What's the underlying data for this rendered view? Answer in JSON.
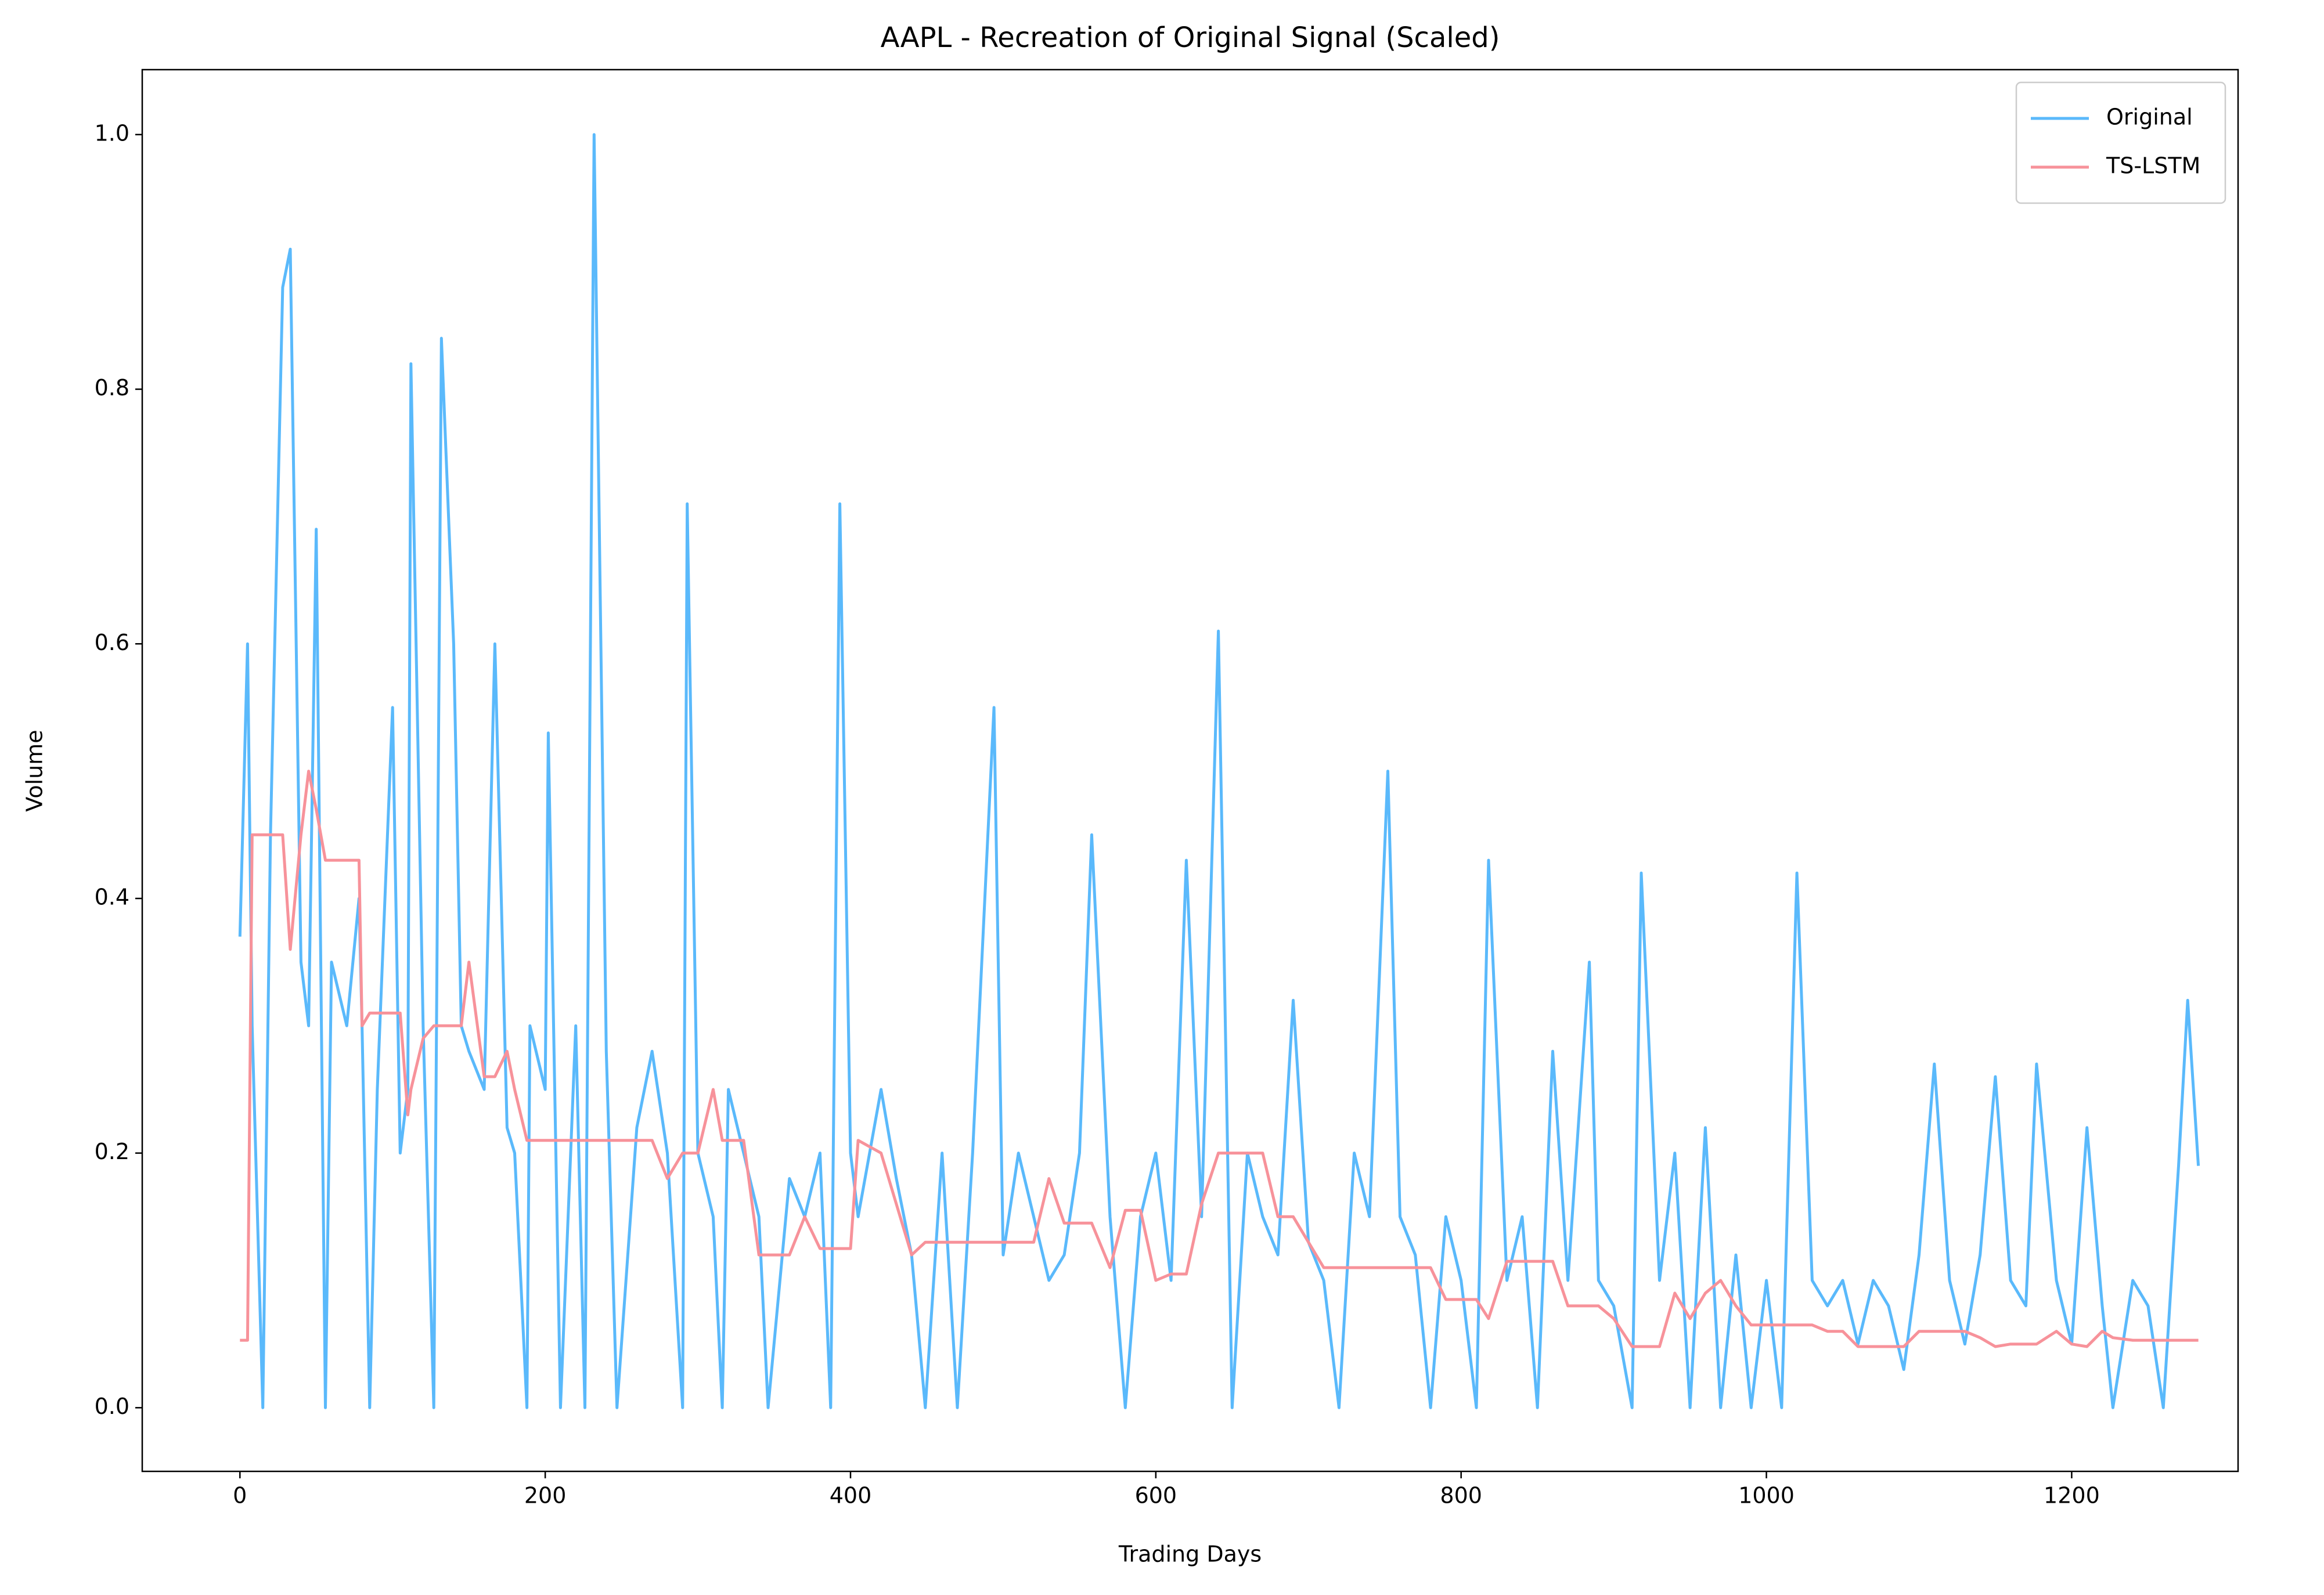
{
  "chart_data": {
    "type": "line",
    "title": "AAPL - Recreation of Original Signal (Scaled)",
    "x_label": "Trading Days",
    "y_label": "Volume",
    "x": [
      0,
      5,
      8,
      15,
      20,
      28,
      33,
      40,
      45,
      50,
      56,
      60,
      70,
      78,
      80,
      85,
      90,
      100,
      105,
      110,
      112,
      120,
      127,
      132,
      140,
      145,
      150,
      160,
      167,
      175,
      180,
      188,
      190,
      200,
      202,
      210,
      220,
      226,
      232,
      240,
      247,
      260,
      270,
      280,
      290,
      293,
      300,
      310,
      316,
      320,
      330,
      340,
      346,
      360,
      370,
      380,
      387,
      393,
      400,
      405,
      420,
      430,
      440,
      449,
      460,
      470,
      480,
      494,
      500,
      510,
      520,
      530,
      540,
      550,
      558,
      570,
      580,
      590,
      600,
      610,
      620,
      630,
      641,
      650,
      660,
      670,
      680,
      690,
      700,
      710,
      720,
      730,
      740,
      752,
      760,
      770,
      780,
      790,
      800,
      810,
      818,
      830,
      840,
      850,
      860,
      870,
      884,
      890,
      900,
      912,
      918,
      930,
      940,
      950,
      960,
      970,
      980,
      990,
      1000,
      1010,
      1020,
      1030,
      1040,
      1050,
      1060,
      1070,
      1080,
      1090,
      1100,
      1110,
      1120,
      1130,
      1140,
      1150,
      1160,
      1170,
      1177,
      1190,
      1200,
      1210,
      1220,
      1227,
      1240,
      1250,
      1260,
      1270,
      1276,
      1283
    ],
    "series": [
      {
        "name": "Original",
        "color": "#5ab9fb",
        "values": [
          0.37,
          0.6,
          0.3,
          0.0,
          0.45,
          0.88,
          0.91,
          0.35,
          0.3,
          0.69,
          0.0,
          0.35,
          0.3,
          0.4,
          0.3,
          0.0,
          0.25,
          0.55,
          0.2,
          0.25,
          0.82,
          0.3,
          0.0,
          0.84,
          0.6,
          0.3,
          0.28,
          0.25,
          0.6,
          0.22,
          0.2,
          0.0,
          0.3,
          0.25,
          0.53,
          0.0,
          0.3,
          0.0,
          1.0,
          0.28,
          0.0,
          0.22,
          0.28,
          0.2,
          0.0,
          0.71,
          0.2,
          0.15,
          0.0,
          0.25,
          0.2,
          0.15,
          0.0,
          0.18,
          0.15,
          0.2,
          0.0,
          0.71,
          0.2,
          0.15,
          0.25,
          0.18,
          0.12,
          0.0,
          0.2,
          0.0,
          0.2,
          0.55,
          0.12,
          0.2,
          0.15,
          0.1,
          0.12,
          0.2,
          0.45,
          0.15,
          0.0,
          0.15,
          0.2,
          0.1,
          0.43,
          0.15,
          0.61,
          0.0,
          0.2,
          0.15,
          0.12,
          0.32,
          0.13,
          0.1,
          0.0,
          0.2,
          0.15,
          0.5,
          0.15,
          0.12,
          0.0,
          0.15,
          0.1,
          0.0,
          0.43,
          0.1,
          0.15,
          0.0,
          0.28,
          0.1,
          0.35,
          0.1,
          0.08,
          0.0,
          0.42,
          0.1,
          0.2,
          0.0,
          0.22,
          0.0,
          0.12,
          0.0,
          0.1,
          0.0,
          0.42,
          0.1,
          0.08,
          0.1,
          0.05,
          0.1,
          0.08,
          0.03,
          0.12,
          0.27,
          0.1,
          0.05,
          0.12,
          0.26,
          0.1,
          0.08,
          0.27,
          0.1,
          0.05,
          0.22,
          0.08,
          0.0,
          0.1,
          0.08,
          0.0,
          0.19,
          0.32,
          0.19
        ]
      },
      {
        "name": "TS-LSTM",
        "color": "#f7929a",
        "values": [
          0.053,
          0.053,
          0.45,
          0.45,
          0.45,
          0.45,
          0.36,
          0.45,
          0.5,
          0.47,
          0.43,
          0.43,
          0.43,
          0.43,
          0.3,
          0.31,
          0.31,
          0.31,
          0.31,
          0.23,
          0.25,
          0.29,
          0.3,
          0.3,
          0.3,
          0.3,
          0.35,
          0.26,
          0.26,
          0.28,
          0.25,
          0.21,
          0.21,
          0.21,
          0.21,
          0.21,
          0.21,
          0.21,
          0.21,
          0.21,
          0.21,
          0.21,
          0.21,
          0.18,
          0.2,
          0.2,
          0.2,
          0.25,
          0.21,
          0.21,
          0.21,
          0.12,
          0.12,
          0.12,
          0.15,
          0.125,
          0.125,
          0.125,
          0.125,
          0.21,
          0.2,
          0.16,
          0.12,
          0.13,
          0.13,
          0.13,
          0.13,
          0.13,
          0.13,
          0.13,
          0.13,
          0.18,
          0.145,
          0.145,
          0.145,
          0.11,
          0.155,
          0.155,
          0.1,
          0.105,
          0.105,
          0.16,
          0.2,
          0.2,
          0.2,
          0.2,
          0.15,
          0.15,
          0.13,
          0.11,
          0.11,
          0.11,
          0.11,
          0.11,
          0.11,
          0.11,
          0.11,
          0.085,
          0.085,
          0.085,
          0.07,
          0.115,
          0.115,
          0.115,
          0.115,
          0.08,
          0.08,
          0.08,
          0.07,
          0.048,
          0.048,
          0.048,
          0.09,
          0.07,
          0.09,
          0.1,
          0.08,
          0.065,
          0.065,
          0.065,
          0.065,
          0.065,
          0.06,
          0.06,
          0.048,
          0.048,
          0.048,
          0.048,
          0.06,
          0.06,
          0.06,
          0.06,
          0.055,
          0.048,
          0.05,
          0.05,
          0.05,
          0.06,
          0.05,
          0.048,
          0.06,
          0.055,
          0.053,
          0.053,
          0.053,
          0.053,
          0.053,
          0.053
        ]
      }
    ],
    "xlim": [
      -64,
      1309
    ],
    "ylim": [
      -0.05,
      1.051
    ],
    "xticks": [
      0,
      200,
      400,
      600,
      800,
      1000,
      1200
    ],
    "yticks": [
      {
        "value": 0,
        "label": "0.0"
      },
      0.2,
      0.4,
      0.6,
      0.8,
      {
        "value": 1,
        "label": "1.0"
      }
    ],
    "grid": false,
    "legend": "upper right"
  }
}
